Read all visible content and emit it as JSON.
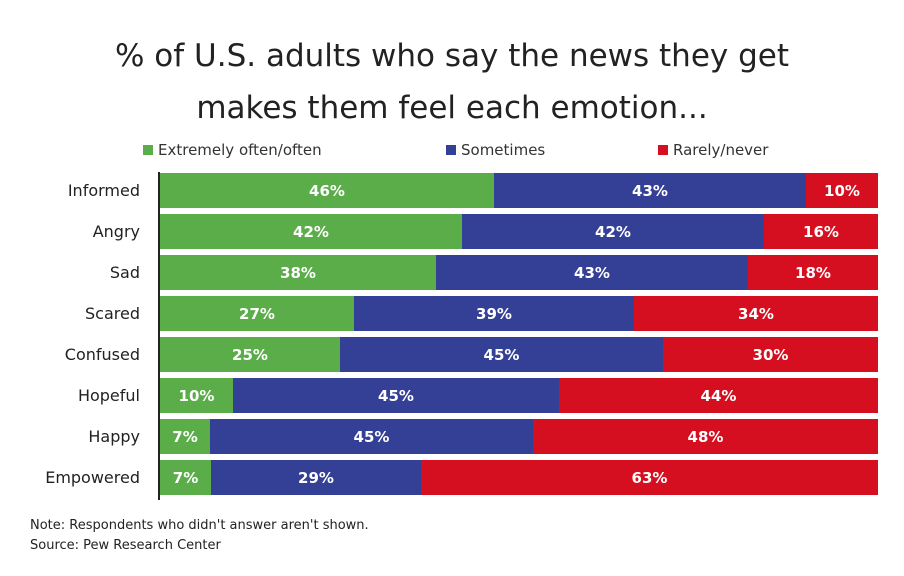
{
  "chart_data": {
    "type": "bar",
    "orientation": "horizontal",
    "stacked": true,
    "title": "% of U.S. adults who say the news they get makes them feel each emotion...",
    "title_lines": [
      "% of U.S. adults who say the news they get",
      "makes them feel each emotion..."
    ],
    "categories": [
      "Informed",
      "Angry",
      "Sad",
      "Scared",
      "Confused",
      "Hopeful",
      "Happy",
      "Empowered"
    ],
    "series": [
      {
        "name": "Extremely often/often",
        "color": "#5aad48",
        "values": [
          46,
          42,
          38,
          27,
          25,
          10,
          7,
          7
        ]
      },
      {
        "name": "Sometimes",
        "color": "#343f96",
        "values": [
          43,
          42,
          43,
          39,
          45,
          45,
          45,
          29
        ]
      },
      {
        "name": "Rarely/never",
        "color": "#d50f1f",
        "values": [
          10,
          16,
          18,
          34,
          30,
          44,
          48,
          63
        ]
      }
    ],
    "value_suffix": "%",
    "xlim": [
      0,
      100
    ],
    "legend_position": "top",
    "grid": false
  },
  "footer": {
    "note": "Note: Respondents who didn't answer aren't shown.",
    "source": "Source: Pew Research Center"
  }
}
